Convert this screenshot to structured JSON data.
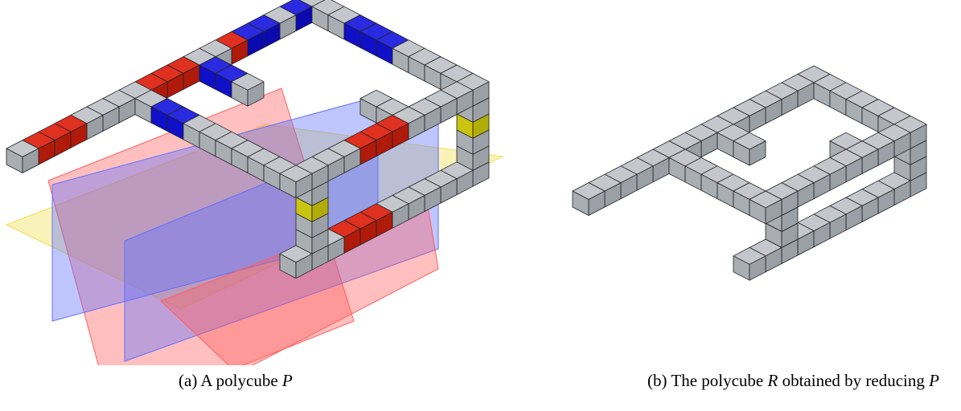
{
  "captions": [
    {
      "label": "(a)",
      "text": "A polycube",
      "symbol": "P"
    },
    {
      "label": "(b)",
      "text": "The polycube",
      "symbol": "R",
      "rest": "obtained by reducing",
      "symbol2": "P"
    }
  ]
}
